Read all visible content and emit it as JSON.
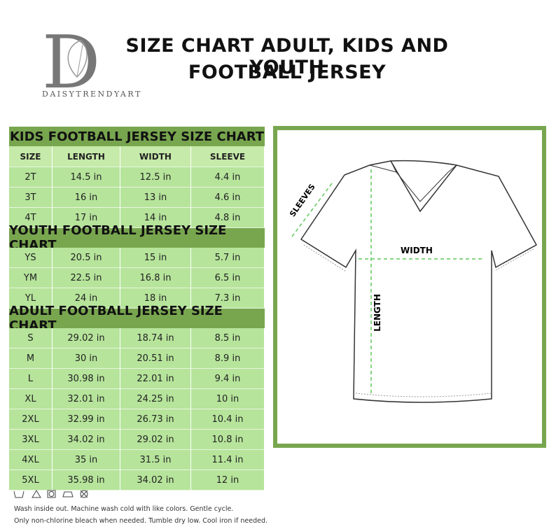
{
  "brand": {
    "letter": "D",
    "name": "DAISYTRENDYART"
  },
  "title": [
    "SIZE CHART ADULT, KIDS AND YOUTH",
    "FOOTBALL JERSEY"
  ],
  "columns": [
    "SIZE",
    "LENGTH",
    "WIDTH",
    "SLEEVE"
  ],
  "sections": [
    {
      "title": "KIDS FOOTBALL JERSEY SIZE CHART",
      "rows": [
        [
          "2T",
          "14.5 in",
          "12.5 in",
          "4.4 in"
        ],
        [
          "3T",
          "16 in",
          "13 in",
          "4.6 in"
        ],
        [
          "4T",
          "17 in",
          "14 in",
          "4.8 in"
        ]
      ]
    },
    {
      "title": "YOUTH FOOTBALL JERSEY SIZE CHART",
      "rows": [
        [
          "YS",
          "20.5 in",
          "15 in",
          "5.7 in"
        ],
        [
          "YM",
          "22.5 in",
          "16.8 in",
          "6.5 in"
        ],
        [
          "YL",
          "24 in",
          "18 in",
          "7.3 in"
        ]
      ]
    },
    {
      "title": "ADULT FOOTBALL JERSEY SIZE CHART",
      "rows": [
        [
          "S",
          "29.02 in",
          "18.74 in",
          "8.5 in"
        ],
        [
          "M",
          "30 in",
          "20.51 in",
          "8.9 in"
        ],
        [
          "L",
          "30.98 in",
          "22.01 in",
          "9.4 in"
        ],
        [
          "XL",
          "32.01 in",
          "24.25 in",
          "10 in"
        ],
        [
          "2XL",
          "32.99 in",
          "26.73 in",
          "10.4 in"
        ],
        [
          "3XL",
          "34.02 in",
          "29.02 in",
          "10.8 in"
        ],
        [
          "4XL",
          "35 in",
          "31.5 in",
          "11.4 in"
        ],
        [
          "5XL",
          "35.98 in",
          "34.02 in",
          "12 in"
        ]
      ]
    }
  ],
  "diagram": {
    "sleeves": "SLEEVES",
    "width": "WIDTH",
    "length": "LENGTH"
  },
  "care": [
    "Wash inside out. Machine wash cold with like colors. Gentle cycle.",
    "Only non-chlorine bleach when needed. Tumble dry low. Cool iron if needed."
  ]
}
